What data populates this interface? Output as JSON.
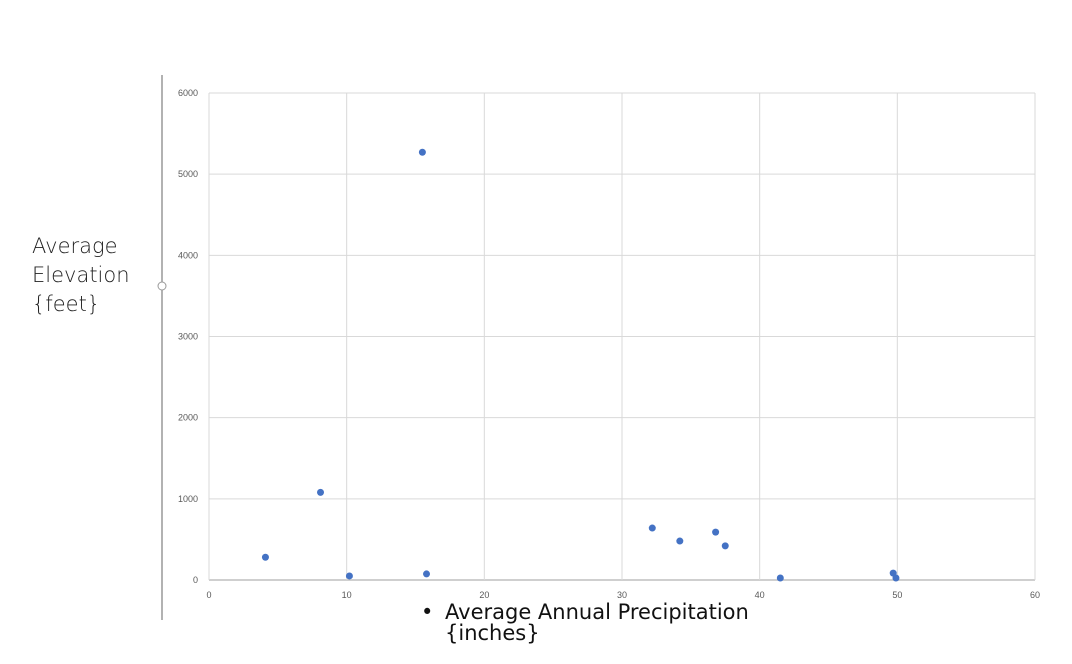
{
  "chart_data": {
    "type": "scatter",
    "title": "",
    "xlabel": "Average Annual Precipitation {inches}",
    "ylabel_lines": [
      "Average",
      "Elevation",
      "{feet}"
    ],
    "xlim": [
      0,
      60
    ],
    "ylim": [
      0,
      6000
    ],
    "xticks": [
      0,
      10,
      20,
      30,
      40,
      50,
      60
    ],
    "yticks": [
      0,
      1000,
      2000,
      3000,
      4000,
      5000,
      6000
    ],
    "grid": true,
    "marker_color": "#4472c4",
    "points": [
      {
        "x": 4.1,
        "y": 280
      },
      {
        "x": 8.1,
        "y": 1080
      },
      {
        "x": 10.2,
        "y": 50
      },
      {
        "x": 15.5,
        "y": 5270
      },
      {
        "x": 15.8,
        "y": 75
      },
      {
        "x": 32.2,
        "y": 640
      },
      {
        "x": 34.2,
        "y": 480
      },
      {
        "x": 36.8,
        "y": 590
      },
      {
        "x": 37.5,
        "y": 420
      },
      {
        "x": 41.5,
        "y": 25
      },
      {
        "x": 49.7,
        "y": 85
      },
      {
        "x": 49.9,
        "y": 25
      }
    ],
    "xlabel_bullet": "•",
    "xlabel_lines": [
      "Average Annual Precipitation",
      "{inches}"
    ]
  }
}
